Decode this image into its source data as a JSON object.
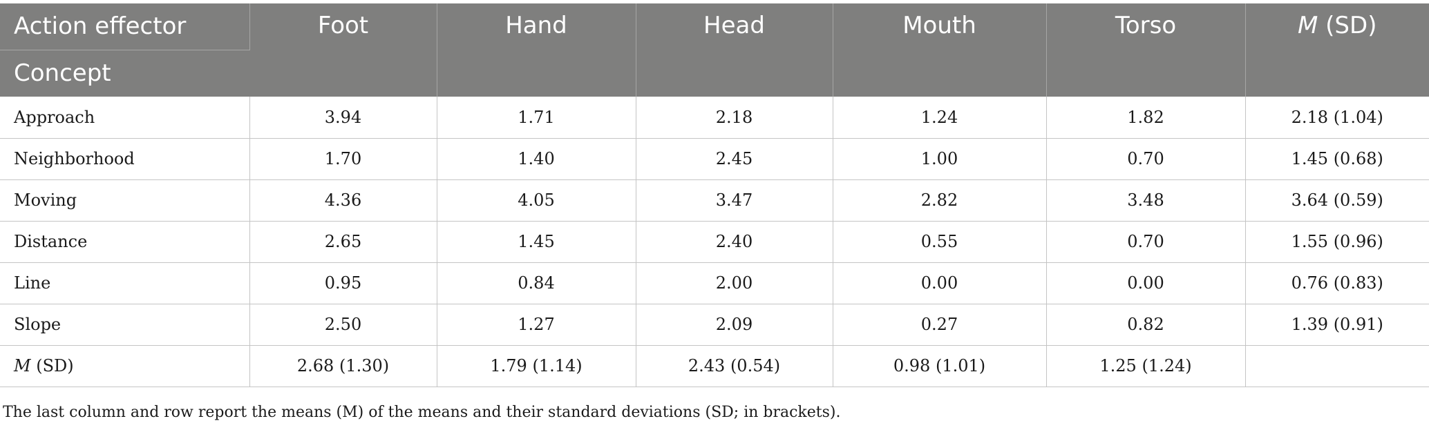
{
  "header": {
    "stub_top": "Action effector",
    "stub_bottom": "Concept",
    "columns": [
      "Foot",
      "Hand",
      "Head",
      "Mouth",
      "Torso"
    ],
    "summary_col_italic": "M",
    "summary_col_rest": " (SD)"
  },
  "rows": [
    {
      "label": "Approach",
      "values": [
        "3.94",
        "1.71",
        "2.18",
        "1.24",
        "1.82",
        "2.18 (1.04)"
      ]
    },
    {
      "label": "Neighborhood",
      "values": [
        "1.70",
        "1.40",
        "2.45",
        "1.00",
        "0.70",
        "1.45 (0.68)"
      ]
    },
    {
      "label": "Moving",
      "values": [
        "4.36",
        "4.05",
        "3.47",
        "2.82",
        "3.48",
        "3.64 (0.59)"
      ]
    },
    {
      "label": "Distance",
      "values": [
        "2.65",
        "1.45",
        "2.40",
        "0.55",
        "0.70",
        "1.55 (0.96)"
      ]
    },
    {
      "label": "Line",
      "values": [
        "0.95",
        "0.84",
        "2.00",
        "0.00",
        "0.00",
        "0.76 (0.83)"
      ]
    },
    {
      "label": "Slope",
      "values": [
        "2.50",
        "1.27",
        "2.09",
        "0.27",
        "0.82",
        "1.39 (0.91)"
      ]
    }
  ],
  "summary_row": {
    "label_italic": "M",
    "label_rest": " (SD)",
    "values": [
      "2.68 (1.30)",
      "1.79 (1.14)",
      "2.43 (0.54)",
      "0.98 (1.01)",
      "1.25 (1.24)",
      ""
    ]
  },
  "note": "The last column and row report the means (M) of the means and their standard deviations (SD; in brackets)."
}
